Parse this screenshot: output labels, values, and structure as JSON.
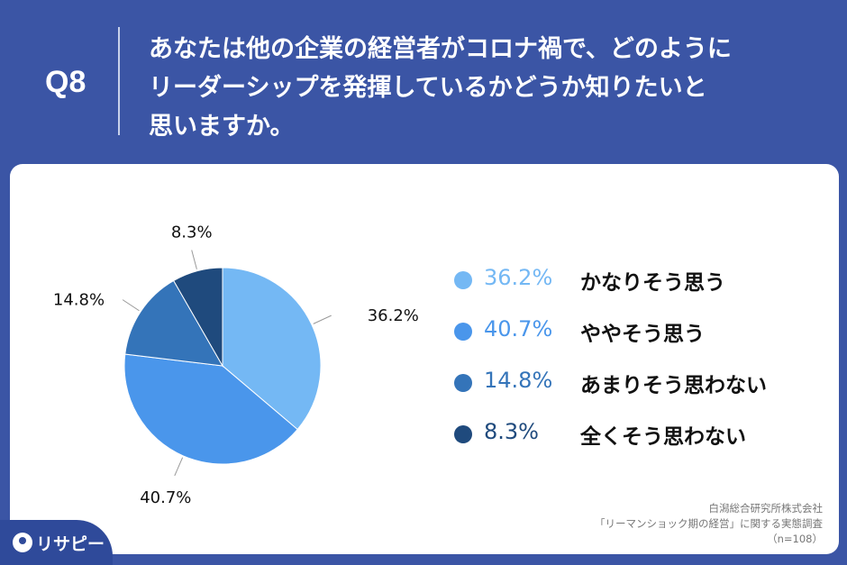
{
  "header": {
    "qnum": "Q8",
    "question_lines": [
      "あなたは他の企業の経営者がコロナ禍で、どのように",
      "リーダーシップを発揮しているかどうか知りたいと",
      "思いますか。"
    ]
  },
  "chart_data": {
    "type": "pie",
    "categories": [
      "かなりそう思う",
      "ややそう思う",
      "あまりそう思わない",
      "全くそう思わない"
    ],
    "values": [
      36.2,
      40.7,
      14.8,
      8.3
    ],
    "value_labels": [
      "36.2%",
      "40.7%",
      "14.8%",
      "8.3%"
    ],
    "colors": [
      "#74b8f4",
      "#4a96eb",
      "#3474b9",
      "#1f4a7d"
    ],
    "start": "top",
    "direction": "clockwise"
  },
  "legend": [
    {
      "value": "36.2%",
      "label": "かなりそう思う",
      "color": "#74b8f4"
    },
    {
      "value": "40.7%",
      "label": "ややそう思う",
      "color": "#4a96eb"
    },
    {
      "value": "14.8%",
      "label": "あまりそう思わない",
      "color": "#3474b9"
    },
    {
      "value": "8.3%",
      "label": "全くそう思わない",
      "color": "#1f4a7d"
    }
  ],
  "source": {
    "line1": "白潟総合研究所株式会社",
    "line2": "「リーマンショック期の経営」に関する実態調査",
    "line3": "（n=108）"
  },
  "logo": {
    "text": "リサピー"
  }
}
